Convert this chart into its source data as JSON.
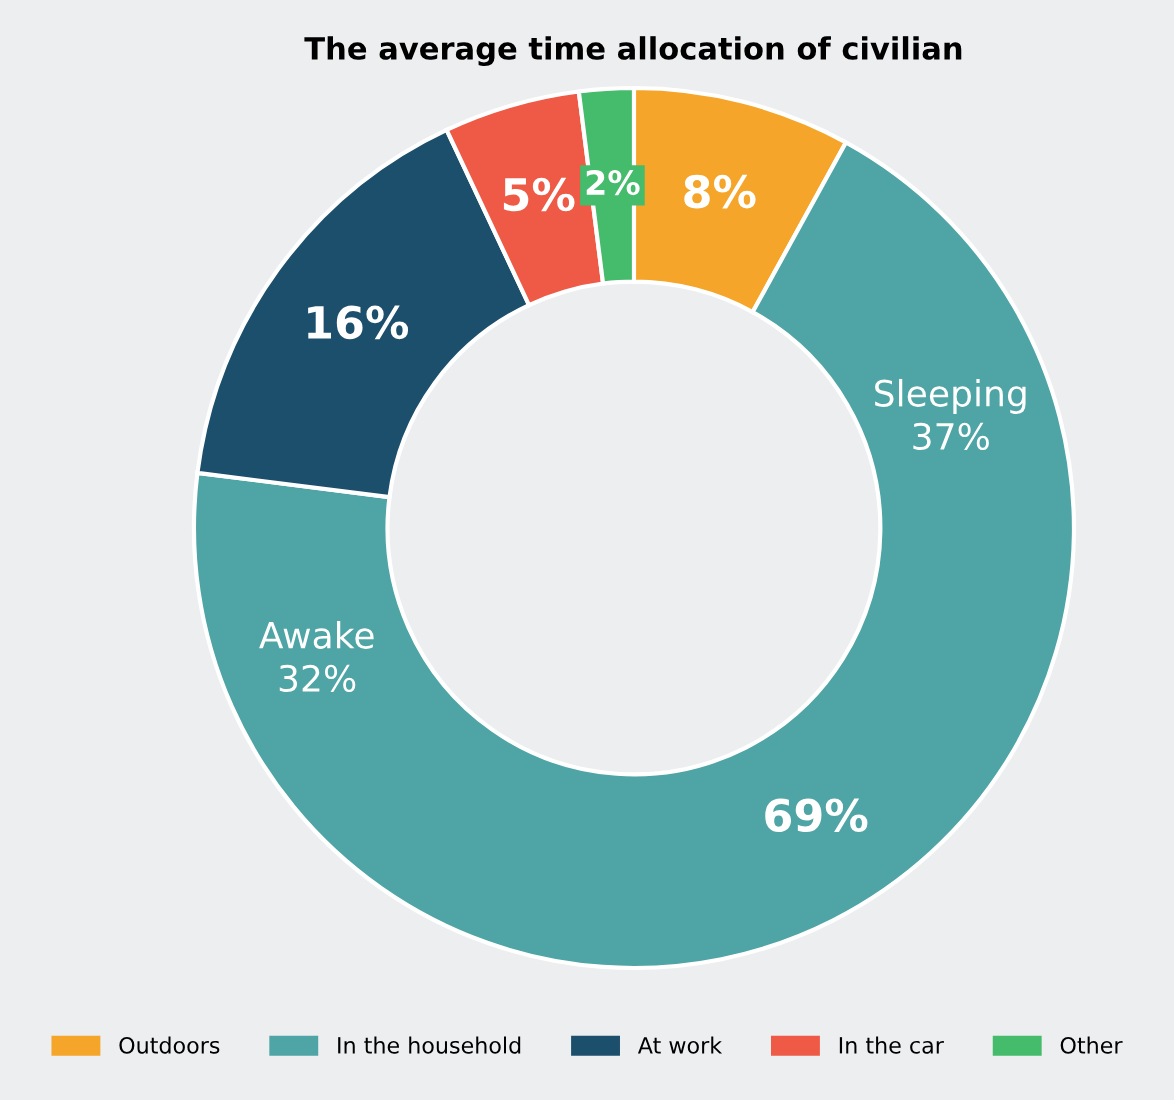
{
  "chart_data": {
    "type": "donut",
    "title": "The average time allocation of civilian",
    "categories": [
      "Outdoors",
      "In the household",
      "At work",
      "In the car",
      "Other"
    ],
    "values": [
      8,
      69,
      16,
      5,
      2
    ],
    "colors": [
      "#f5a62a",
      "#4fa4a5",
      "#1c4f6c",
      "#ee5a45",
      "#45bb6c"
    ],
    "value_labels": [
      "8%",
      "69%",
      "16%",
      "5%",
      "2%"
    ],
    "annotations": [
      "Sleeping\n37%",
      "Awake\n32%"
    ],
    "legend": "bottom"
  }
}
